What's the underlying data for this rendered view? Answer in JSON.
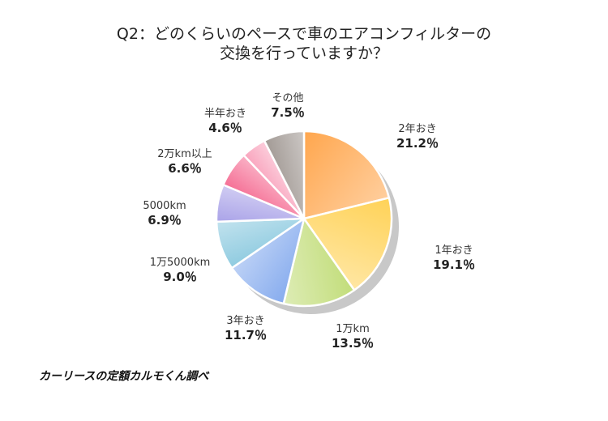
{
  "chart_data": {
    "type": "pie",
    "title_lines": [
      "Q2：どのくらいのペースで車のエアコンフィルターの",
      "交換を行っていますか？"
    ],
    "slices": [
      {
        "label": "2年おき",
        "value": 21.2,
        "display": "21.2％",
        "color": "#ffa64d"
      },
      {
        "label": "1年おき",
        "value": 19.1,
        "display": "19.1％",
        "color": "#ffd257"
      },
      {
        "label": "1万km",
        "value": 13.5,
        "display": "13.5％",
        "color": "#c2dd7a"
      },
      {
        "label": "3年おき",
        "value": 11.7,
        "display": "11.7％",
        "color": "#87acee"
      },
      {
        "label": "1万5000km",
        "value": 9.0,
        "display": "9.0％",
        "color": "#8fcbe0"
      },
      {
        "label": "5000km",
        "value": 6.9,
        "display": "6.9％",
        "color": "#aaa3e8"
      },
      {
        "label": "2万km以上",
        "value": 6.6,
        "display": "6.6％",
        "color": "#f56f95"
      },
      {
        "label": "半年おき",
        "value": 4.6,
        "display": "4.6％",
        "color": "#f9a5be"
      },
      {
        "label": "その他",
        "value": 7.5,
        "display": "7.5％",
        "color": "#a29a95"
      }
    ],
    "start": "12-o'clock",
    "direction": "clockwise",
    "legend": "none",
    "shadow_color": "#c8c8c8"
  },
  "source": "カーリースの定額カルモくん調べ"
}
